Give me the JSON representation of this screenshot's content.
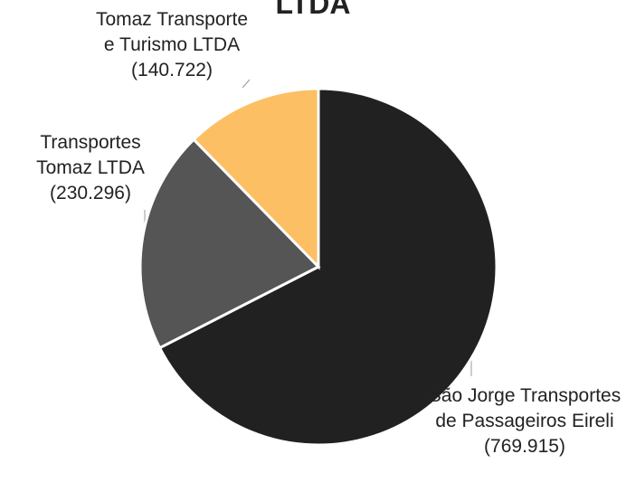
{
  "chart_data": {
    "type": "pie",
    "title": "LTDA",
    "categories": [
      "São Jorge Transportes de Passageiros Eireli",
      "Transportes Tomaz LTDA",
      "Tomaz Transporte e Turismo LTDA"
    ],
    "values": [
      769915,
      230296,
      140722
    ],
    "value_labels": [
      "(769.915)",
      "(230.296)",
      "(140.722)"
    ],
    "colors": [
      "#212121",
      "#555555",
      "#fdbf63"
    ]
  }
}
